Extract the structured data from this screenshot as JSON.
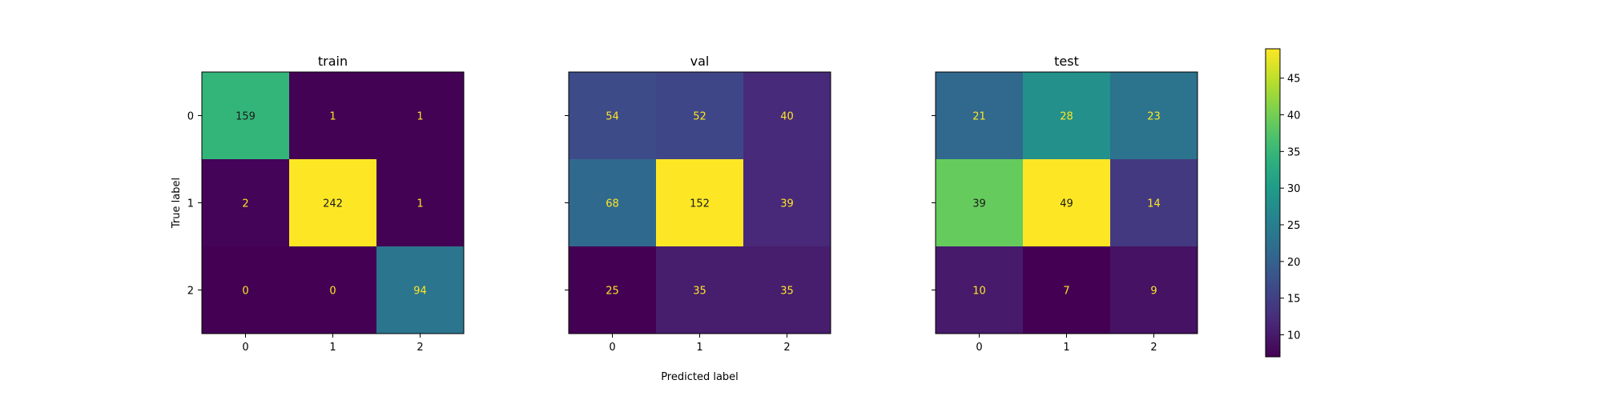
{
  "chart_data": {
    "type": "heatmap",
    "colormap": "viridis",
    "xlabel": "Predicted label",
    "ylabel": "True label",
    "class_labels": [
      "0",
      "1",
      "2"
    ],
    "colorbar": {
      "ticks": [
        10,
        15,
        20,
        25,
        30,
        35,
        40,
        45
      ],
      "range": [
        7,
        49
      ]
    },
    "panels": [
      {
        "title": "train",
        "matrix": [
          [
            159,
            1,
            1
          ],
          [
            2,
            242,
            1
          ],
          [
            0,
            0,
            94
          ]
        ],
        "color_range": [
          0,
          242
        ]
      },
      {
        "title": "val",
        "matrix": [
          [
            54,
            52,
            40
          ],
          [
            68,
            152,
            39
          ],
          [
            25,
            35,
            35
          ]
        ],
        "color_range": [
          25,
          152
        ]
      },
      {
        "title": "test",
        "matrix": [
          [
            21,
            28,
            23
          ],
          [
            39,
            49,
            14
          ],
          [
            10,
            7,
            9
          ]
        ],
        "color_range": [
          7,
          49
        ]
      }
    ]
  }
}
